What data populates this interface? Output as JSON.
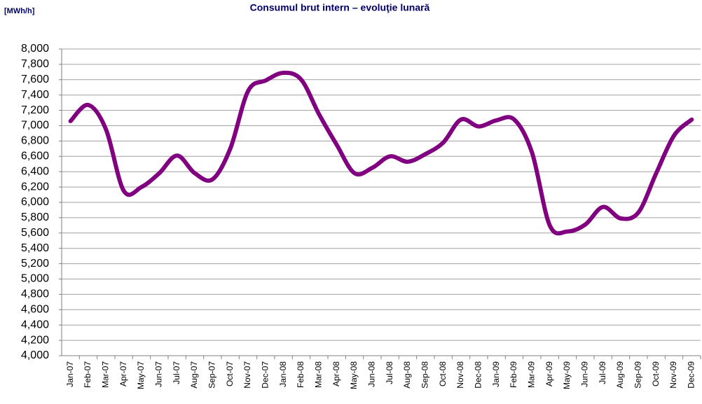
{
  "chart_data": {
    "type": "line",
    "title": "Consumul brut intern – evoluţie lunară",
    "y_label": "[MWh/h]",
    "categories": [
      "Jan-07",
      "Feb-07",
      "Mar-07",
      "Apr-07",
      "May-07",
      "Jun-07",
      "Jul-07",
      "Aug-07",
      "Sep-07",
      "Oct-07",
      "Nov-07",
      "Dec-07",
      "Jan-08",
      "Feb-08",
      "Mar-08",
      "Apr-08",
      "May-08",
      "Jun-08",
      "Jul-08",
      "Aug-08",
      "Sep-08",
      "Oct-08",
      "Nov-08",
      "Dec-08",
      "Jan-09",
      "Feb-09",
      "Mar-09",
      "Apr-09",
      "May-09",
      "Jun-09",
      "Jul-09",
      "Aug-09",
      "Sep-09",
      "Oct-09",
      "Nov-09",
      "Dec-09"
    ],
    "series": [
      {
        "color": "#800080",
        "values": [
          7060,
          7270,
          6950,
          6150,
          6200,
          6380,
          6610,
          6380,
          6300,
          6700,
          7450,
          7590,
          7690,
          7600,
          7150,
          6750,
          6380,
          6450,
          6600,
          6530,
          6630,
          6780,
          7080,
          6990,
          7070,
          7080,
          6650,
          5700,
          5620,
          5710,
          5940,
          5790,
          5870,
          6380,
          6870,
          7080
        ]
      }
    ],
    "ylim": [
      4000,
      8000
    ],
    "yticks": [
      {
        "value": 4000,
        "label": "4,000"
      },
      {
        "value": 4200,
        "label": "4,200"
      },
      {
        "value": 4400,
        "label": "4,400"
      },
      {
        "value": 4600,
        "label": "4,600"
      },
      {
        "value": 4800,
        "label": "4,800"
      },
      {
        "value": 5000,
        "label": "5,000"
      },
      {
        "value": 5200,
        "label": "5,200"
      },
      {
        "value": 5400,
        "label": "5,400"
      },
      {
        "value": 5600,
        "label": "5,600"
      },
      {
        "value": 5800,
        "label": "5,800"
      },
      {
        "value": 6000,
        "label": "6,000"
      },
      {
        "value": 6200,
        "label": "6,200"
      },
      {
        "value": 6400,
        "label": "6,400"
      },
      {
        "value": 6600,
        "label": "6,600"
      },
      {
        "value": 6800,
        "label": "6,800"
      },
      {
        "value": 7000,
        "label": "7,000"
      },
      {
        "value": 7200,
        "label": "7,200"
      },
      {
        "value": 7400,
        "label": "7,400"
      },
      {
        "value": 7600,
        "label": "7,600"
      },
      {
        "value": 7800,
        "label": "7,800"
      },
      {
        "value": 8000,
        "label": "8,000"
      }
    ],
    "grid": true
  }
}
